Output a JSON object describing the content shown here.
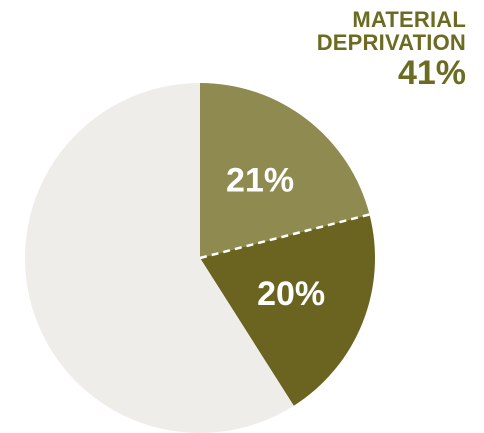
{
  "callout": {
    "label": "MATERIAL DEPRIVATION",
    "value": "41%"
  },
  "colors": {
    "slice_light_olive": "#8f8a50",
    "slice_dark_olive": "#6b6420",
    "slice_rest": "#efedea",
    "callout_text": "#6b6b22",
    "divider": "#ffffff"
  },
  "chart_data": {
    "type": "pie",
    "title": "",
    "slices": [
      {
        "label": "21%",
        "value": 21,
        "color": "#8f8a50"
      },
      {
        "label": "20%",
        "value": 20,
        "color": "#6b6420"
      },
      {
        "label": "",
        "value": 59,
        "color": "#efedea"
      }
    ],
    "start": "12 o'clock",
    "direction": "clockwise",
    "divider_between_first_two": "dashed"
  }
}
